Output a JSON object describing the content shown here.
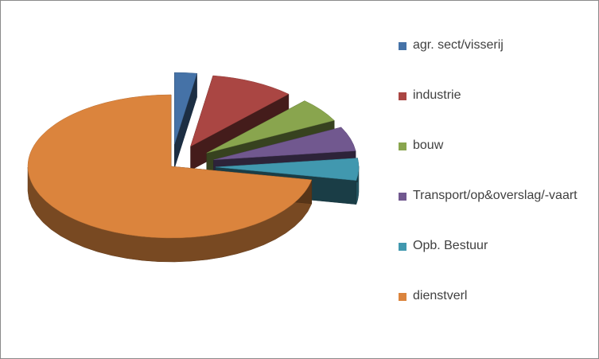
{
  "chart_data": {
    "type": "pie",
    "style": "3d-exploded",
    "legend_position": "right",
    "categories": [
      "agr. sect/visserij",
      "industrie",
      "bouw",
      "Transport/op&overslag/-vaart",
      "Opb. Bestuur",
      "dienstverl"
    ],
    "values": [
      2.5,
      9.5,
      5.5,
      5.5,
      5.0,
      72.0
    ],
    "unit": "%",
    "colors": [
      "#4572A7",
      "#AA4643",
      "#89A54E",
      "#71588F",
      "#4198AF",
      "#DB843D"
    ]
  }
}
